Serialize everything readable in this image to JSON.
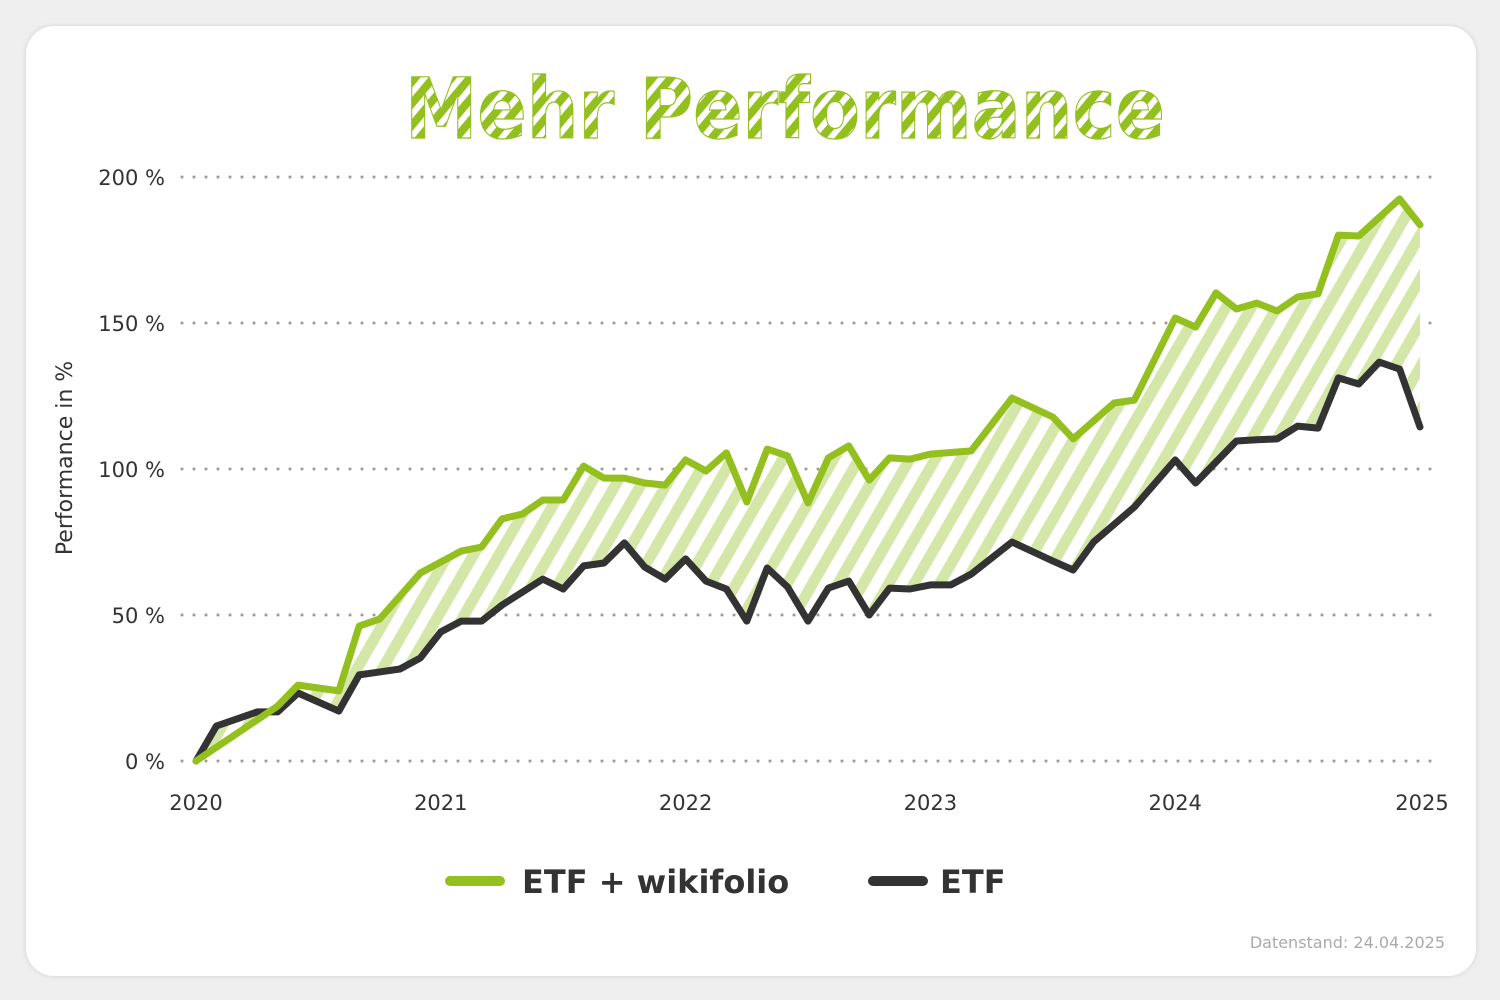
{
  "chart_data": {
    "type": "line",
    "title": "Mehr Performance",
    "ylabel": "Performance in %",
    "xlabel": "",
    "ylim": [
      0,
      200
    ],
    "xlim": [
      "2020-01",
      "2025-01"
    ],
    "yticks": [
      0,
      50,
      100,
      150,
      200
    ],
    "ytick_labels": [
      "0 %",
      "50 %",
      "100 %",
      "150 %",
      "200 %"
    ],
    "xtick_labels": [
      "2020",
      "2021",
      "2022",
      "2023",
      "2024",
      "2025"
    ],
    "grid": "horizontal dotted",
    "legend_placement": "bottom",
    "area_between_series": "striped light green",
    "footnote": "Datenstand: 24.04.2025",
    "series": [
      {
        "name": "ETF + wikifolio",
        "color": "#93c01f",
        "points": [
          [
            "2020-01",
            0
          ],
          [
            "2020-05",
            18.8
          ],
          [
            "2020-06",
            26.0
          ],
          [
            "2020-08",
            24.0
          ],
          [
            "2020-09",
            46.2
          ],
          [
            "2020-10",
            48.6
          ],
          [
            "2020-12",
            64.4
          ],
          [
            "2021-02",
            71.9
          ],
          [
            "2021-03",
            73.3
          ],
          [
            "2021-04",
            82.9
          ],
          [
            "2021-05",
            84.6
          ],
          [
            "2021-06",
            89.4
          ],
          [
            "2021-07",
            89.4
          ],
          [
            "2021-08",
            101.0
          ],
          [
            "2021-09",
            96.9
          ],
          [
            "2021-10",
            96.9
          ],
          [
            "2021-11",
            95.2
          ],
          [
            "2021-12",
            94.5
          ],
          [
            "2022-01",
            103.1
          ],
          [
            "2022-02",
            99.3
          ],
          [
            "2022-03",
            105.5
          ],
          [
            "2022-04",
            88.7
          ],
          [
            "2022-05",
            106.8
          ],
          [
            "2022-06",
            104.5
          ],
          [
            "2022-07",
            88.4
          ],
          [
            "2022-08",
            103.8
          ],
          [
            "2022-09",
            107.9
          ],
          [
            "2022-10",
            96.2
          ],
          [
            "2022-11",
            103.8
          ],
          [
            "2022-12",
            103.4
          ],
          [
            "2023-01",
            105.1
          ],
          [
            "2023-03",
            106.2
          ],
          [
            "2023-05",
            124.3
          ],
          [
            "2023-07",
            117.8
          ],
          [
            "2023-08",
            110.3
          ],
          [
            "2023-10",
            122.6
          ],
          [
            "2023-11",
            123.6
          ],
          [
            "2024-01",
            151.7
          ],
          [
            "2024-02",
            148.6
          ],
          [
            "2024-03",
            160.3
          ],
          [
            "2024-04",
            154.8
          ],
          [
            "2024-05",
            156.8
          ],
          [
            "2024-06",
            154.1
          ],
          [
            "2024-07",
            158.9
          ],
          [
            "2024-08",
            160.0
          ],
          [
            "2024-09",
            180.1
          ],
          [
            "2024-10",
            179.8
          ],
          [
            "2024-12",
            192.5
          ],
          [
            "2025-01",
            183.6
          ]
        ]
      },
      {
        "name": "ETF",
        "color": "#333333",
        "points": [
          [
            "2020-01",
            0
          ],
          [
            "2020-02",
            12.0
          ],
          [
            "2020-04",
            16.8
          ],
          [
            "2020-05",
            16.8
          ],
          [
            "2020-06",
            23.3
          ],
          [
            "2020-08",
            17.1
          ],
          [
            "2020-09",
            29.5
          ],
          [
            "2020-11",
            31.5
          ],
          [
            "2020-12",
            35.3
          ],
          [
            "2021-01",
            44.2
          ],
          [
            "2021-02",
            47.9
          ],
          [
            "2021-03",
            47.9
          ],
          [
            "2021-04",
            53.4
          ],
          [
            "2021-06",
            62.3
          ],
          [
            "2021-07",
            58.9
          ],
          [
            "2021-08",
            66.8
          ],
          [
            "2021-09",
            67.8
          ],
          [
            "2021-10",
            74.7
          ],
          [
            "2021-11",
            66.4
          ],
          [
            "2021-12",
            62.3
          ],
          [
            "2022-01",
            69.2
          ],
          [
            "2022-02",
            61.6
          ],
          [
            "2022-03",
            58.9
          ],
          [
            "2022-04",
            47.9
          ],
          [
            "2022-05",
            66.1
          ],
          [
            "2022-06",
            59.6
          ],
          [
            "2022-07",
            47.9
          ],
          [
            "2022-08",
            59.2
          ],
          [
            "2022-09",
            61.6
          ],
          [
            "2022-10",
            50.0
          ],
          [
            "2022-11",
            59.2
          ],
          [
            "2022-12",
            58.9
          ],
          [
            "2023-01",
            60.3
          ],
          [
            "2023-02",
            60.3
          ],
          [
            "2023-03",
            64.0
          ],
          [
            "2023-05",
            75.0
          ],
          [
            "2023-07",
            68.5
          ],
          [
            "2023-08",
            65.4
          ],
          [
            "2023-09",
            75.0
          ],
          [
            "2023-11",
            87.0
          ],
          [
            "2024-01",
            103.1
          ],
          [
            "2024-02",
            95.2
          ],
          [
            "2024-04",
            109.6
          ],
          [
            "2024-05",
            110.0
          ],
          [
            "2024-06",
            110.3
          ],
          [
            "2024-07",
            114.7
          ],
          [
            "2024-08",
            114.0
          ],
          [
            "2024-09",
            131.2
          ],
          [
            "2024-10",
            129.1
          ],
          [
            "2024-11",
            136.6
          ],
          [
            "2024-12",
            134.2
          ],
          [
            "2025-01",
            114.4
          ]
        ]
      }
    ],
    "colors": {
      "accent": "#93c01f",
      "stripe": "#d5e7a8",
      "dark": "#333333",
      "grid": "#999999"
    }
  }
}
